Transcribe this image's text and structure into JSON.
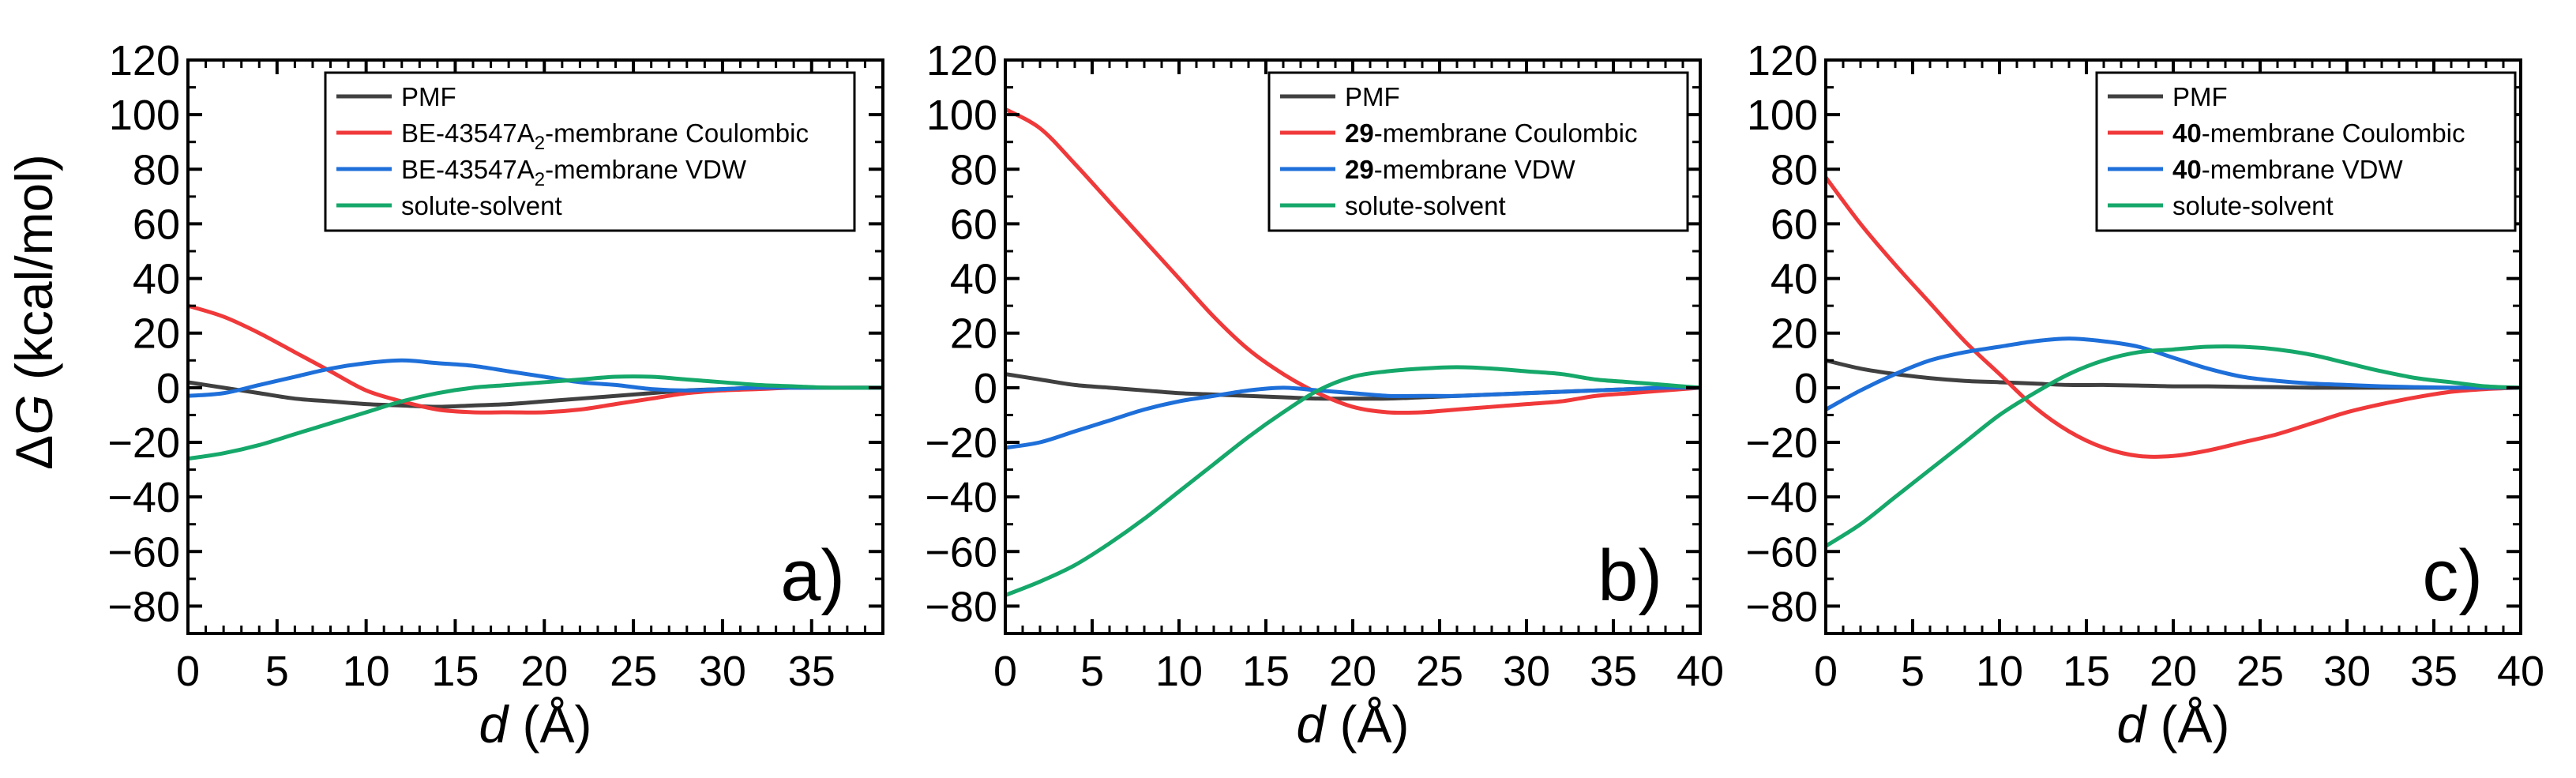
{
  "figure": {
    "ylabel_delta": "Δ",
    "ylabel_var": "G",
    "ylabel_units": " (kcal/mol)",
    "xlabel_var": "d",
    "xlabel_units": " (Å)"
  },
  "chart_data": [
    {
      "type": "line",
      "panel_label": "a)",
      "xlim": [
        0,
        39
      ],
      "ylim": [
        -90,
        120
      ],
      "xticks": [
        0,
        5,
        10,
        15,
        20,
        25,
        30,
        35
      ],
      "yticks": [
        -80,
        -60,
        -40,
        -20,
        0,
        20,
        40,
        60,
        80,
        100,
        120
      ],
      "x": [
        0,
        2,
        4,
        6,
        8,
        10,
        12,
        14,
        16,
        18,
        20,
        22,
        24,
        26,
        28,
        30,
        32,
        34,
        36,
        38,
        39
      ],
      "legend": [
        {
          "prefix": "",
          "bold": "",
          "main": "PMF",
          "sub": "",
          "suffix": "",
          "color": "#404040"
        },
        {
          "prefix": "",
          "bold": "",
          "main": "BE-43547A",
          "sub": "2",
          "suffix": "-membrane Coulombic",
          "color": "#f0393a"
        },
        {
          "prefix": "",
          "bold": "",
          "main": "BE-43547A",
          "sub": "2",
          "suffix": "-membrane VDW",
          "color": "#1e6fd9"
        },
        {
          "prefix": "",
          "bold": "",
          "main": "solute-solvent",
          "sub": "",
          "suffix": "",
          "color": "#15a86a"
        }
      ],
      "series": [
        {
          "name": "PMF",
          "color": "#404040",
          "values": [
            2,
            0,
            -2,
            -4,
            -5,
            -6,
            -6.5,
            -7,
            -6.5,
            -6,
            -5,
            -4,
            -3,
            -2,
            -1,
            -0.5,
            0,
            0,
            0,
            0,
            0
          ]
        },
        {
          "name": "Coulombic",
          "color": "#f0393a",
          "values": [
            30,
            26,
            20,
            13,
            6,
            -1,
            -5,
            -8,
            -9,
            -9,
            -9,
            -8,
            -6,
            -4,
            -2,
            -1,
            -0.5,
            0,
            0,
            0,
            0
          ]
        },
        {
          "name": "VDW",
          "color": "#1e6fd9",
          "values": [
            -3,
            -2,
            1,
            4,
            7,
            9,
            10,
            9,
            8,
            6,
            4,
            2,
            1,
            -0.5,
            -1,
            -0.5,
            0,
            0,
            0,
            0,
            0
          ]
        },
        {
          "name": "solute-solvent",
          "color": "#15a86a",
          "values": [
            -26,
            -24,
            -21,
            -17,
            -13,
            -9,
            -5,
            -2,
            0,
            1,
            2,
            3,
            4,
            4,
            3,
            2,
            1,
            0.5,
            0,
            0,
            0
          ]
        }
      ]
    },
    {
      "type": "line",
      "panel_label": "b)",
      "xlim": [
        0,
        40
      ],
      "ylim": [
        -90,
        120
      ],
      "xticks": [
        0,
        5,
        10,
        15,
        20,
        25,
        30,
        35,
        40
      ],
      "yticks": [
        -80,
        -60,
        -40,
        -20,
        0,
        20,
        40,
        60,
        80,
        100,
        120
      ],
      "x": [
        0,
        2,
        4,
        6,
        8,
        10,
        12,
        14,
        16,
        18,
        20,
        22,
        24,
        26,
        28,
        30,
        32,
        34,
        36,
        38,
        40
      ],
      "legend": [
        {
          "prefix": "",
          "bold": "",
          "main": "PMF",
          "sub": "",
          "suffix": "",
          "color": "#404040"
        },
        {
          "prefix": "",
          "bold": "29",
          "main": "-membrane Coulombic",
          "sub": "",
          "suffix": "",
          "color": "#f0393a"
        },
        {
          "prefix": "",
          "bold": "29",
          "main": "-membrane VDW",
          "sub": "",
          "suffix": "",
          "color": "#1e6fd9"
        },
        {
          "prefix": "",
          "bold": "",
          "main": "solute-solvent",
          "sub": "",
          "suffix": "",
          "color": "#15a86a"
        }
      ],
      "series": [
        {
          "name": "PMF",
          "color": "#404040",
          "values": [
            5,
            3,
            1,
            0,
            -1,
            -2,
            -2.5,
            -3,
            -3.5,
            -4,
            -4,
            -4,
            -3.5,
            -3,
            -2.5,
            -2,
            -1.5,
            -1,
            -0.5,
            0,
            0
          ]
        },
        {
          "name": "Coulombic",
          "color": "#f0393a",
          "values": [
            102,
            95,
            82,
            68,
            54,
            40,
            26,
            14,
            5,
            -2,
            -7,
            -9,
            -9,
            -8,
            -7,
            -6,
            -5,
            -3,
            -2,
            -1,
            0
          ]
        },
        {
          "name": "VDW",
          "color": "#1e6fd9",
          "values": [
            -22,
            -20,
            -16,
            -12,
            -8,
            -5,
            -3,
            -1,
            0,
            -1,
            -2,
            -3,
            -3,
            -3,
            -2.5,
            -2,
            -1.5,
            -1,
            -0.5,
            0,
            0
          ]
        },
        {
          "name": "solute-solvent",
          "color": "#15a86a",
          "values": [
            -76,
            -71,
            -65,
            -57,
            -48,
            -38,
            -28,
            -18,
            -9,
            -1,
            4,
            6,
            7,
            7.5,
            7,
            6,
            5,
            3,
            2,
            1,
            0
          ]
        }
      ]
    },
    {
      "type": "line",
      "panel_label": "c)",
      "xlim": [
        0,
        40
      ],
      "ylim": [
        -90,
        120
      ],
      "xticks": [
        0,
        5,
        10,
        15,
        20,
        25,
        30,
        35,
        40
      ],
      "yticks": [
        -80,
        -60,
        -40,
        -20,
        0,
        20,
        40,
        60,
        80,
        100,
        120
      ],
      "x": [
        0,
        2,
        4,
        6,
        8,
        10,
        12,
        14,
        16,
        18,
        20,
        22,
        24,
        26,
        28,
        30,
        32,
        34,
        36,
        38,
        40
      ],
      "legend": [
        {
          "prefix": "",
          "bold": "",
          "main": "PMF",
          "sub": "",
          "suffix": "",
          "color": "#404040"
        },
        {
          "prefix": "",
          "bold": "40",
          "main": "-membrane Coulombic",
          "sub": "",
          "suffix": "",
          "color": "#f0393a"
        },
        {
          "prefix": "",
          "bold": "40",
          "main": "-membrane VDW",
          "sub": "",
          "suffix": "",
          "color": "#1e6fd9"
        },
        {
          "prefix": "",
          "bold": "",
          "main": "solute-solvent",
          "sub": "",
          "suffix": "",
          "color": "#15a86a"
        }
      ],
      "series": [
        {
          "name": "PMF",
          "color": "#404040",
          "values": [
            10,
            7,
            5,
            3.5,
            2.5,
            2,
            1.5,
            1,
            1,
            0.8,
            0.5,
            0.5,
            0.3,
            0.2,
            0,
            0,
            0,
            0,
            0,
            0,
            0
          ]
        },
        {
          "name": "Coulombic",
          "color": "#f0393a",
          "values": [
            77,
            60,
            45,
            31,
            17,
            5,
            -7,
            -16,
            -22,
            -25,
            -25,
            -23,
            -20,
            -17,
            -13,
            -9,
            -6,
            -3.5,
            -1.5,
            -0.5,
            0
          ]
        },
        {
          "name": "VDW",
          "color": "#1e6fd9",
          "values": [
            -8,
            -1,
            5,
            10,
            13,
            15,
            17,
            18,
            17,
            15,
            11,
            7,
            4,
            2.5,
            1.5,
            1,
            0.5,
            0.2,
            0,
            0,
            0
          ]
        },
        {
          "name": "solute-solvent",
          "color": "#15a86a",
          "values": [
            -58,
            -50,
            -40,
            -30,
            -20,
            -10,
            -2,
            5,
            10,
            13,
            14,
            15,
            15,
            14,
            12,
            9,
            6,
            3.5,
            2,
            0.5,
            0
          ]
        }
      ]
    }
  ]
}
